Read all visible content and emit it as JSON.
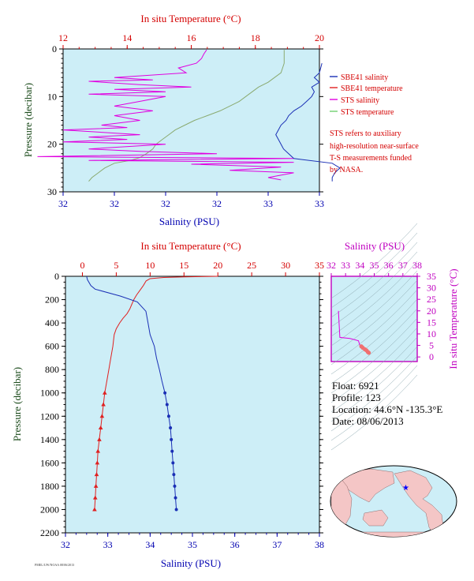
{
  "colors": {
    "plot_bg": "#cdeef7",
    "sbe41_salinity": "#1a2fb5",
    "sbe41_temperature": "#e02020",
    "sts_salinity": "#e000e0",
    "sts_temperature": "#8aaa70",
    "temp_axis": "#d40000",
    "sal_axis": "#0000b0",
    "ts_axis": "#c000c0"
  },
  "legend": {
    "items": [
      {
        "label": "SBE41 salinity",
        "color": "#1a2fb5"
      },
      {
        "label": "SBE41 temperature",
        "color": "#e02020"
      },
      {
        "label": "STS salinity",
        "color": "#e000e0"
      },
      {
        "label": "STS temperature",
        "color": "#70d070"
      }
    ],
    "note": [
      "STS refers to auxiliary",
      "high-resolution near-surface",
      "T-S measurements funded",
      "by NASA."
    ]
  },
  "info": {
    "float": "Float:  6921",
    "profile": "Profile:  123",
    "location": "Location:  44.6°N  -135.3°E",
    "date": "Date:  08/06/2013"
  },
  "footer_stamp": "PMEL/UW/NOAA 08/06/2013",
  "chart_data": [
    {
      "id": "near-surface",
      "type": "line",
      "top_xlabel": "In situ Temperature (°C)",
      "bottom_xlabel": "Salinity (PSU)",
      "ylabel": "Pressure (decibar)",
      "temp_lim": [
        12,
        20
      ],
      "temp_ticks": [
        "12",
        "14",
        "16",
        "18",
        "20"
      ],
      "sal_lim": [
        32,
        33
      ],
      "sal_ticks": [
        "32",
        "32",
        "32",
        "32",
        "33",
        "33"
      ],
      "ylim": [
        0,
        30
      ],
      "y_ticks": [
        "0",
        "10",
        "20",
        "30"
      ],
      "series": [
        {
          "name": "STS temperature",
          "axis": "temp",
          "points": [
            [
              18.9,
              0.2
            ],
            [
              18.9,
              3
            ],
            [
              18.8,
              5
            ],
            [
              18.6,
              6
            ],
            [
              18.4,
              7
            ],
            [
              18.1,
              8
            ],
            [
              17.9,
              9
            ],
            [
              17.7,
              10
            ],
            [
              17.5,
              11
            ],
            [
              17.2,
              12
            ],
            [
              16.9,
              13
            ],
            [
              16.5,
              14
            ],
            [
              16.1,
              15
            ],
            [
              15.8,
              16
            ],
            [
              15.5,
              17
            ],
            [
              15.3,
              18
            ],
            [
              15.1,
              19
            ],
            [
              14.9,
              20
            ],
            [
              14.8,
              21
            ],
            [
              14.6,
              22
            ],
            [
              14.4,
              22.8
            ],
            [
              14.1,
              23.4
            ],
            [
              13.6,
              24
            ],
            [
              13.3,
              25
            ],
            [
              13.1,
              26
            ],
            [
              12.9,
              27
            ],
            [
              12.8,
              27.8
            ]
          ]
        },
        {
          "name": "STS salinity",
          "axis": "sal",
          "points": [
            [
              32.56,
              0.2
            ],
            [
              32.55,
              1
            ],
            [
              32.54,
              2
            ],
            [
              32.52,
              3
            ],
            [
              32.45,
              4
            ],
            [
              32.48,
              5
            ],
            [
              32.2,
              6
            ],
            [
              32.35,
              6.5
            ],
            [
              32.1,
              6.8
            ],
            [
              32.3,
              7.5
            ],
            [
              32.5,
              8
            ],
            [
              32.2,
              8.5
            ],
            [
              32.4,
              9
            ],
            [
              32.1,
              9.5
            ],
            [
              32.4,
              10
            ],
            [
              32.3,
              11
            ],
            [
              32.2,
              12
            ],
            [
              32.35,
              13
            ],
            [
              32.2,
              14
            ],
            [
              32.3,
              15
            ],
            [
              32.15,
              16
            ],
            [
              32.25,
              16.5
            ],
            [
              32.0,
              17
            ],
            [
              32.3,
              18
            ],
            [
              32.1,
              18.5
            ],
            [
              32.25,
              19
            ],
            [
              32.0,
              19.5
            ],
            [
              32.4,
              20
            ],
            [
              32.1,
              21
            ],
            [
              32.3,
              21.5
            ],
            [
              32.6,
              22
            ],
            [
              31.9,
              22.6
            ],
            [
              32.9,
              23
            ],
            [
              32.1,
              23.4
            ],
            [
              32.9,
              23.8
            ],
            [
              32.5,
              24.2
            ],
            [
              32.85,
              24.8
            ],
            [
              32.65,
              25.5
            ],
            [
              32.9,
              26
            ],
            [
              32.8,
              27
            ],
            [
              32.85,
              27.5
            ]
          ]
        },
        {
          "name": "SBE41 salinity",
          "axis": "sal",
          "points": [
            [
              33.01,
              3
            ],
            [
              33.0,
              5
            ],
            [
              32.98,
              6
            ],
            [
              33.0,
              7
            ],
            [
              32.97,
              8
            ],
            [
              32.98,
              9
            ],
            [
              32.97,
              10
            ],
            [
              32.95,
              11
            ],
            [
              32.93,
              12
            ],
            [
              32.9,
              13
            ],
            [
              32.88,
              14
            ],
            [
              32.87,
              15
            ],
            [
              32.85,
              16
            ],
            [
              32.84,
              17
            ],
            [
              32.83,
              18
            ],
            [
              32.84,
              19
            ],
            [
              32.85,
              20
            ],
            [
              32.86,
              21
            ],
            [
              32.88,
              22
            ],
            [
              32.9,
              23
            ],
            [
              33.05,
              24
            ],
            [
              33.08,
              25
            ],
            [
              33.06,
              26
            ],
            [
              33.05,
              27
            ],
            [
              33.05,
              27.8
            ]
          ]
        }
      ]
    },
    {
      "id": "full-profile",
      "type": "line",
      "top_xlabel": "In situ Temperature (°C)",
      "bottom_xlabel": "Salinity (PSU)",
      "ylabel": "Pressure (decibar)",
      "temp_lim": [
        -2.5,
        35
      ],
      "temp_ticks": [
        "0",
        "5",
        "10",
        "15",
        "20",
        "25",
        "30",
        "35"
      ],
      "temp_tick_values": [
        0,
        5,
        10,
        15,
        20,
        25,
        30,
        35
      ],
      "sal_lim": [
        32,
        38
      ],
      "sal_ticks": [
        "32",
        "33",
        "34",
        "35",
        "36",
        "37",
        "38"
      ],
      "ylim": [
        0,
        2200
      ],
      "y_ticks": [
        "0",
        "200",
        "400",
        "600",
        "800",
        "1000",
        "1200",
        "1400",
        "1600",
        "1800",
        "2000",
        "2200"
      ],
      "series": [
        {
          "name": "SBE41 temperature",
          "axis": "temp",
          "points": [
            [
              20.0,
              0
            ],
            [
              15,
              5
            ],
            [
              12,
              10
            ],
            [
              10,
              20
            ],
            [
              9.4,
              40
            ],
            [
              9.0,
              80
            ],
            [
              8.5,
              120
            ],
            [
              8.0,
              160
            ],
            [
              7.6,
              200
            ],
            [
              7.3,
              240
            ],
            [
              7.0,
              280
            ],
            [
              6.6,
              320
            ],
            [
              6.0,
              360
            ],
            [
              5.5,
              400
            ],
            [
              5.0,
              450
            ],
            [
              4.7,
              500
            ],
            [
              4.5,
              600
            ],
            [
              4.2,
              700
            ],
            [
              3.9,
              800
            ],
            [
              3.6,
              900
            ],
            [
              3.3,
              1000
            ],
            [
              3.1,
              1100
            ],
            [
              2.9,
              1200
            ],
            [
              2.7,
              1300
            ],
            [
              2.5,
              1400
            ],
            [
              2.3,
              1500
            ],
            [
              2.2,
              1600
            ],
            [
              2.1,
              1700
            ],
            [
              2.0,
              1800
            ],
            [
              1.9,
              1900
            ],
            [
              1.8,
              2000
            ]
          ]
        },
        {
          "name": "SBE41 salinity",
          "axis": "sal",
          "points": [
            [
              32.5,
              0
            ],
            [
              32.52,
              30
            ],
            [
              32.6,
              80
            ],
            [
              32.7,
              110
            ],
            [
              33.3,
              170
            ],
            [
              33.7,
              220
            ],
            [
              33.9,
              300
            ],
            [
              33.95,
              400
            ],
            [
              34.0,
              500
            ],
            [
              34.1,
              600
            ],
            [
              34.15,
              700
            ],
            [
              34.22,
              800
            ],
            [
              34.28,
              900
            ],
            [
              34.35,
              1000
            ],
            [
              34.4,
              1100
            ],
            [
              34.44,
              1200
            ],
            [
              34.48,
              1300
            ],
            [
              34.5,
              1400
            ],
            [
              34.52,
              1500
            ],
            [
              34.54,
              1600
            ],
            [
              34.56,
              1700
            ],
            [
              34.58,
              1800
            ],
            [
              34.6,
              1900
            ],
            [
              34.62,
              2000
            ]
          ]
        }
      ]
    },
    {
      "id": "ts-diagram",
      "type": "scatter",
      "top_xlabel": "Salinity (PSU)",
      "ylabel": "In situ Temperature (°C)",
      "sal_lim": [
        32,
        38
      ],
      "sal_ticks": [
        "32",
        "33",
        "34",
        "35",
        "36",
        "37",
        "38"
      ],
      "temp_lim": [
        -2,
        35
      ],
      "temp_ticks": [
        "0",
        "5",
        "10",
        "15",
        "20",
        "25",
        "30",
        "35"
      ],
      "points": [
        [
          32.5,
          20.0
        ],
        [
          32.6,
          8.5
        ],
        [
          33.3,
          8.0
        ],
        [
          33.9,
          7.0
        ],
        [
          34.0,
          5.0
        ],
        [
          34.1,
          4.6
        ],
        [
          34.2,
          4.0
        ],
        [
          34.35,
          3.3
        ],
        [
          34.45,
          2.9
        ],
        [
          34.55,
          2.2
        ],
        [
          34.62,
          1.8
        ]
      ]
    }
  ]
}
